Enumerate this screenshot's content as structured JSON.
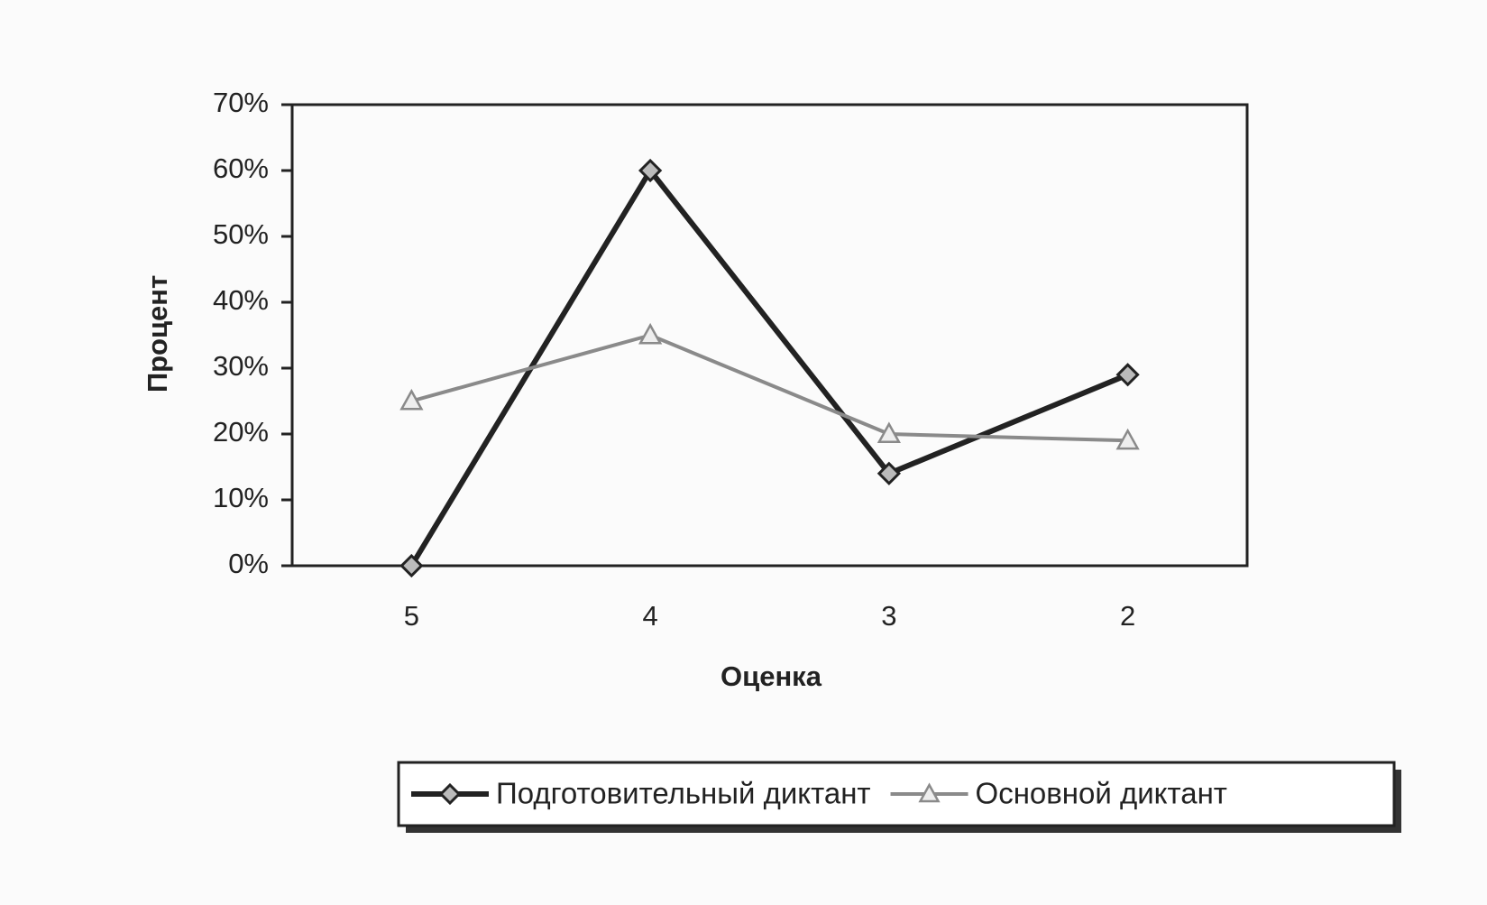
{
  "chart_data": {
    "type": "line",
    "categories": [
      "5",
      "4",
      "3",
      "2"
    ],
    "x_label": "Оценка",
    "y_label": "Процент",
    "ylim": [
      0,
      70
    ],
    "yticks": [
      {
        "value": 0,
        "label": "0%"
      },
      {
        "value": 10,
        "label": "10%"
      },
      {
        "value": 20,
        "label": "20%"
      },
      {
        "value": 30,
        "label": "30%"
      },
      {
        "value": 40,
        "label": "40%"
      },
      {
        "value": 50,
        "label": "50%"
      },
      {
        "value": 60,
        "label": "60%"
      },
      {
        "value": 70,
        "label": "70%"
      }
    ],
    "grid": false,
    "legend": "bottom",
    "series": [
      {
        "name": "Подготовительный диктант",
        "color": "#222222",
        "marker": "diamond",
        "values": [
          0,
          60,
          14,
          29
        ]
      },
      {
        "name": "Основной диктант",
        "color": "#8a8a8a",
        "marker": "triangle",
        "values": [
          25,
          35,
          20,
          19
        ]
      }
    ]
  }
}
